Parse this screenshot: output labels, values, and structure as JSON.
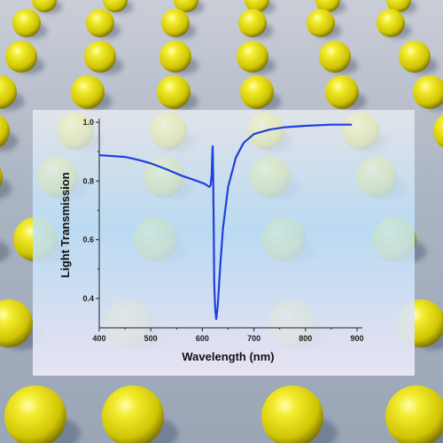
{
  "chart_data": {
    "type": "line",
    "title": "",
    "xlabel": "Wavelength (nm)",
    "ylabel": "Light Transmission",
    "xlim": [
      400,
      900
    ],
    "ylim": [
      0.3,
      1.0
    ],
    "xticks": [
      400,
      500,
      600,
      700,
      800,
      900
    ],
    "xtick_labels": [
      "400",
      "500",
      "600",
      "700",
      "800",
      "900"
    ],
    "yticks": [
      0.4,
      0.6,
      0.8,
      1.0
    ],
    "ytick_labels": [
      "0.4",
      "0.6",
      "0.8",
      "1.0"
    ],
    "grid": false,
    "legend": "none",
    "line_color": "#1f3fe0",
    "series": [
      {
        "x": [
          400,
          450,
          480,
          500,
          530,
          560,
          590,
          605,
          613,
          616,
          618,
          619,
          620,
          621,
          622,
          623,
          625,
          627,
          630,
          635,
          640,
          650,
          665,
          680,
          700,
          730,
          760,
          800,
          850,
          890
        ],
        "y": [
          0.888,
          0.882,
          0.87,
          0.86,
          0.84,
          0.818,
          0.8,
          0.79,
          0.78,
          0.785,
          0.82,
          0.88,
          0.918,
          0.82,
          0.65,
          0.45,
          0.36,
          0.33,
          0.38,
          0.52,
          0.64,
          0.78,
          0.88,
          0.93,
          0.96,
          0.975,
          0.983,
          0.988,
          0.992,
          0.992
        ]
      }
    ]
  },
  "scene": {
    "sphere_color": "#e6df12",
    "background_color": "#b4bcc8"
  }
}
